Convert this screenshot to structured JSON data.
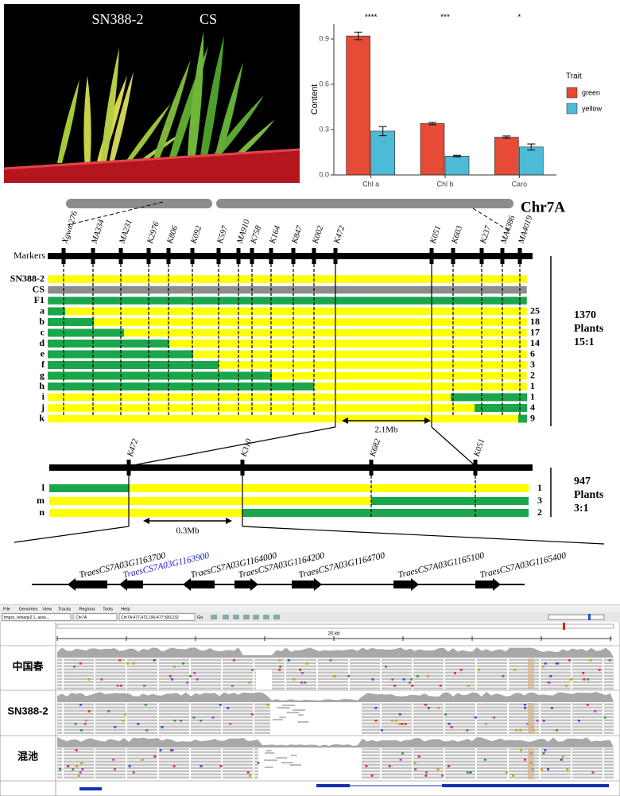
{
  "photo": {
    "labels": [
      "SN388-2",
      "CS"
    ]
  },
  "chart_data": {
    "type": "bar",
    "categories": [
      "Chl a",
      "Chl b",
      "Caro"
    ],
    "y_label": "Content",
    "legend_title": "Trait",
    "significance": [
      "****",
      "***",
      "*"
    ],
    "series": [
      {
        "name": "green",
        "color": "#e64b35",
        "values": [
          0.92,
          0.34,
          0.25
        ],
        "errors": [
          0.025,
          0.008,
          0.008
        ]
      },
      {
        "name": "yellow",
        "color": "#4dbbd5",
        "values": [
          0.29,
          0.125,
          0.185
        ],
        "errors": [
          0.03,
          0.005,
          0.02
        ]
      }
    ],
    "ylim": [
      0,
      1.0
    ],
    "yticks": [
      {
        "value": 0,
        "label": "0.0"
      },
      0.3,
      0.6,
      0.9
    ],
    "grid": false
  },
  "map": {
    "chromosome": "Chr7A",
    "markers_label": "Markers",
    "markers": [
      "Xgwm276",
      "MA334",
      "MA231",
      "K2976",
      "K806",
      "K092",
      "K597",
      "MA910",
      "K758",
      "K164",
      "K847",
      "K002",
      "K472",
      "K051",
      "K603",
      "K237",
      "MA4386",
      "MA4019"
    ],
    "rows": [
      {
        "label": "SN388-2"
      },
      {
        "label": "CS"
      },
      {
        "label": "F1"
      },
      {
        "label": "a",
        "count": 25
      },
      {
        "label": "b",
        "count": 18
      },
      {
        "label": "c",
        "count": 17
      },
      {
        "label": "d",
        "count": 14
      },
      {
        "label": "e",
        "count": 6
      },
      {
        "label": "f",
        "count": 3
      },
      {
        "label": "g",
        "count": 2
      },
      {
        "label": "h",
        "count": 1
      },
      {
        "label": "i",
        "count": 1
      },
      {
        "label": "j",
        "count": 4
      },
      {
        "label": "k",
        "count": 9
      }
    ],
    "summary": [
      "1370",
      "Plants",
      "15:1"
    ],
    "distance": "2.1Mb"
  },
  "fine_map": {
    "markers": [
      "K472",
      "K310",
      "K682",
      "K051"
    ],
    "rows": [
      {
        "label": "l",
        "count": 1
      },
      {
        "label": "m",
        "count": 3
      },
      {
        "label": "n",
        "count": 2
      }
    ],
    "summary": [
      "947",
      "Plants",
      "3:1"
    ],
    "distance": "0.3Mb"
  },
  "genes": [
    "TraesCS7A03G1163700",
    "TraesCS7A03G1163900",
    "TraesCS7A03G1164000",
    "TraesCS7A03G1164200",
    "TraesCS7A03G1164700",
    "TraesCS7A03G1165100",
    "TraesCS7A03G1165400"
  ],
  "igv": {
    "menu": [
      "File",
      "Genomes",
      "View",
      "Tracks",
      "Regions",
      "Tools",
      "Help"
    ],
    "genome": "tmgsc_refseqv2.1_asse...",
    "chromosome": "Chr7A",
    "locus": "Chr7A:477,472,190-477,500,232",
    "go": "Go",
    "scale": "20 kb",
    "tracks": [
      "中国春",
      "SN388-2",
      "混池"
    ]
  }
}
